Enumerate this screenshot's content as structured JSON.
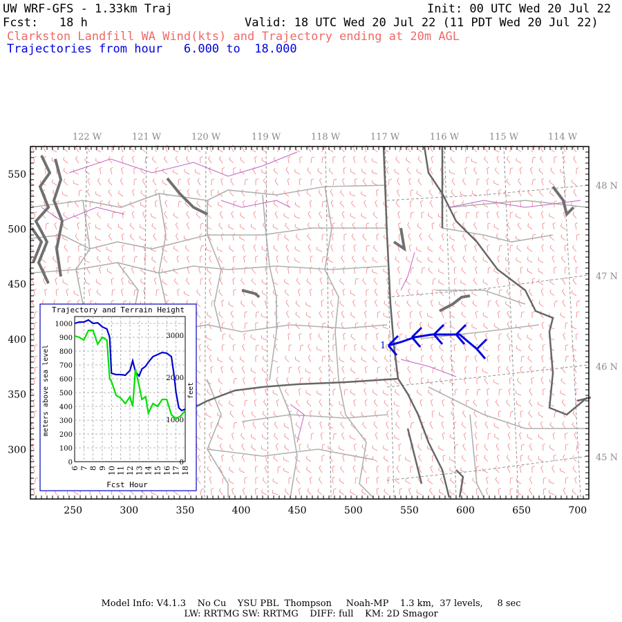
{
  "header": {
    "title": "UW WRF-GFS - 1.33km Traj",
    "init": "Init: 00 UTC Wed 20 Jul 22",
    "fcst": "Fcst:   18 h",
    "valid": "Valid: 18 UTC Wed 20 Jul 22 (11 PDT Wed 20 Jul 22)",
    "subtitle": "Clarkston Landfill WA Wind(kts) and Trajectory ending at 20m AGL",
    "traj_range": "Trajectories from hour   6.000 to  18.000"
  },
  "map": {
    "lon_labels": [
      "122 W",
      "121 W",
      "120 W",
      "119 W",
      "118 W",
      "117 W",
      "116 W",
      "115 W",
      "114 W"
    ],
    "lat_labels": [
      "48 N",
      "47 N",
      "46 N",
      "45 N"
    ],
    "x_ticks": [
      "250",
      "300",
      "350",
      "400",
      "450",
      "500",
      "550",
      "600",
      "650",
      "700"
    ],
    "y_ticks": [
      "550",
      "500",
      "450",
      "400",
      "350",
      "300"
    ],
    "traj_label": "1",
    "colors": {
      "barbs": "#f08080",
      "trajectory": "#0000e0",
      "state_lines": "#666666",
      "county_lines": "#b0b0b0",
      "water": "#c060c0"
    }
  },
  "inset": {
    "title": "Trajectory and Terrain Height",
    "ylabel_left": "meters above sea level",
    "ylabel_right": "feet",
    "xlabel": "Fcst Hour",
    "x_ticks": [
      "6",
      "7",
      "8",
      "9",
      "10",
      "11",
      "12",
      "13",
      "14",
      "15",
      "16",
      "17",
      "18"
    ],
    "y_ticks_m": [
      "1000",
      "900",
      "800",
      "700",
      "600",
      "500",
      "400",
      "300",
      "200",
      "100",
      "0"
    ],
    "y_ticks_ft": [
      "3000",
      "2000",
      "1000",
      "0"
    ],
    "colors": {
      "trajectory": "#0000d0",
      "terrain": "#00e000"
    }
  },
  "chart_data": {
    "type": "line",
    "title": "Trajectory and Terrain Height",
    "xlabel": "Fcst Hour",
    "ylabel": "meters above sea level",
    "xlim": [
      6,
      18
    ],
    "ylim": [
      0,
      1050
    ],
    "series": [
      {
        "name": "",
        "x": [
          6,
          6.5,
          7,
          7.5,
          8,
          8.5,
          9,
          9.5,
          9.8,
          10,
          10.5,
          11,
          11.5,
          12,
          12.3,
          12.6,
          13,
          13.3,
          13.7,
          14,
          14.5,
          15,
          15.5,
          16,
          16.5,
          16.8,
          17,
          17.3,
          17.6,
          18
        ],
        "values": [
          1000,
          1010,
          1010,
          1025,
          1000,
          1005,
          975,
          960,
          900,
          640,
          630,
          630,
          625,
          660,
          730,
          650,
          620,
          670,
          690,
          720,
          760,
          775,
          790,
          785,
          760,
          620,
          500,
          390,
          370,
          380
        ]
      },
      {
        "name": "",
        "x": [
          6,
          6.5,
          7,
          7.5,
          8,
          8.5,
          9,
          9.5,
          9.8,
          10,
          10.5,
          11,
          11.5,
          12,
          12.3,
          12.6,
          13,
          13.3,
          13.7,
          14,
          14.5,
          15,
          15.5,
          16,
          16.5,
          17,
          17.5,
          18
        ],
        "values": [
          910,
          900,
          880,
          950,
          950,
          850,
          900,
          880,
          600,
          580,
          480,
          460,
          420,
          470,
          400,
          670,
          550,
          450,
          470,
          350,
          420,
          400,
          450,
          450,
          340,
          310,
          330,
          370
        ]
      }
    ]
  },
  "footer": {
    "line1": "Model Info: V4.1.3    No Cu    YSU PBL  Thompson     Noah-MP    1.3 km,  37 levels,     8 sec",
    "line2": "LW: RRTMG SW: RRTMG    DIFF: full    KM: 2D Smagor"
  }
}
